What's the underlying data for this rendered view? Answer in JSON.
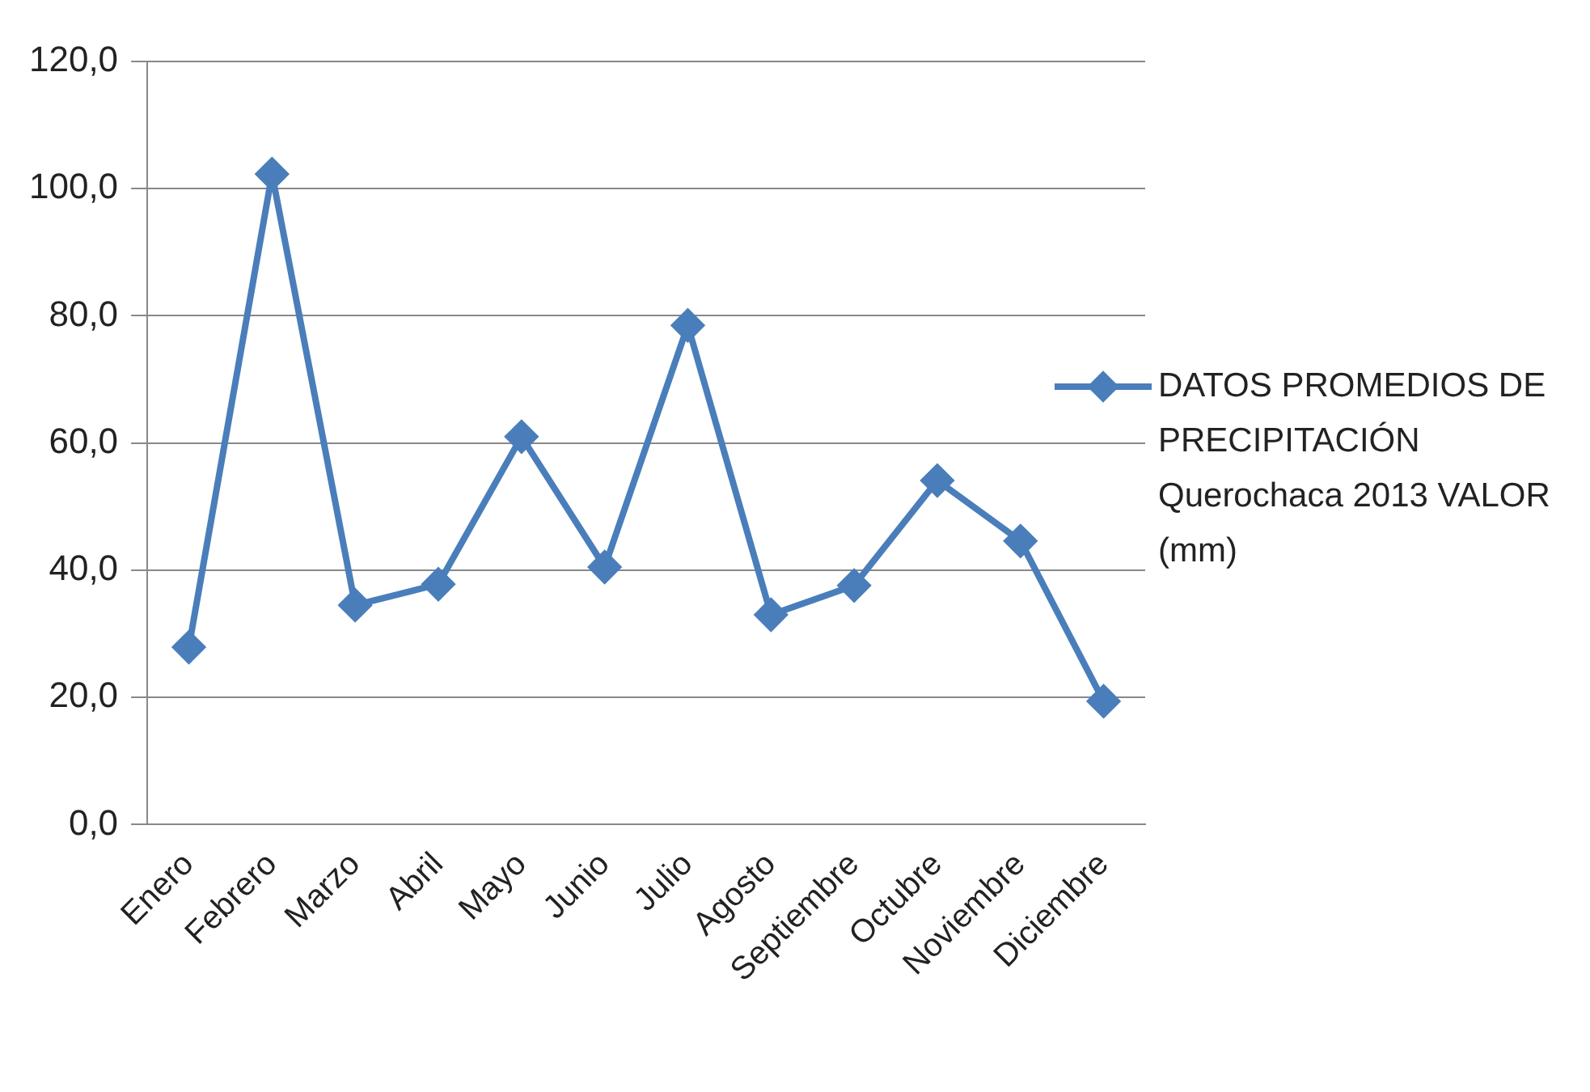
{
  "chart_data": {
    "type": "line",
    "categories": [
      "Enero",
      "Febrero",
      "Marzo",
      "Abril",
      "Mayo",
      "Junio",
      "Julio",
      "Agosto",
      "Septiembre",
      "Octubre",
      "Noviembre",
      "Diciembre"
    ],
    "series": [
      {
        "name": "DATOS PROMEDIOS DE PRECIPITACIÓN Querochaca 2013 VALOR (mm)",
        "color": "#4a7ebb",
        "values": [
          27.9,
          102.3,
          34.5,
          37.8,
          61.0,
          40.5,
          78.5,
          33.0,
          37.6,
          54.1,
          44.6,
          19.4
        ]
      }
    ],
    "ylim": [
      0,
      120
    ],
    "yticks": [
      {
        "value": 0,
        "label": "0,0"
      },
      {
        "value": 20,
        "label": "20,0"
      },
      {
        "value": 40,
        "label": "40,0"
      },
      {
        "value": 60,
        "label": "60,0"
      },
      {
        "value": 80,
        "label": "80,0"
      },
      {
        "value": 100,
        "label": "100,0"
      },
      {
        "value": 120,
        "label": "120,0"
      }
    ],
    "grid": "y",
    "legend": "right",
    "marker": "diamond",
    "line_style": "solid"
  }
}
